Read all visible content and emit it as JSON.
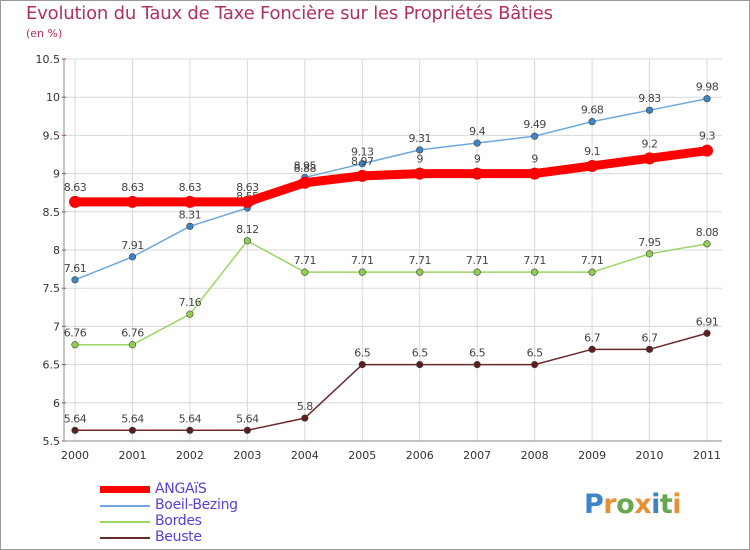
{
  "chart_data": {
    "type": "line",
    "title": "Evolution du Taux de Taxe Foncière sur les Propriétés Bâties",
    "subtitle": "(en %)",
    "xlabel": "",
    "ylabel": "",
    "x": [
      "2000",
      "2001",
      "2002",
      "2003",
      "2004",
      "2005",
      "2006",
      "2007",
      "2008",
      "2009",
      "2010",
      "2011"
    ],
    "ylim": [
      5.5,
      10.5
    ],
    "yticks": [
      5.5,
      6,
      6.5,
      7,
      7.5,
      8,
      8.5,
      9,
      9.5,
      10,
      10.5
    ],
    "grid": true,
    "legend_position": "bottom-left",
    "series": [
      {
        "name": "ANGAïS",
        "color": "#ff0000",
        "width": 9,
        "marker_color": "#ff0000",
        "values": [
          8.63,
          8.63,
          8.63,
          8.63,
          8.88,
          8.97,
          9,
          9,
          9,
          9.1,
          9.2,
          9.3
        ],
        "labels": [
          "8.63",
          "8.63",
          "8.63",
          "8.63",
          "8.88",
          "8.97",
          "9",
          "9",
          "9",
          "9.1",
          "9.2",
          "9.3"
        ]
      },
      {
        "name": "Boeil-Bezing",
        "color": "#6fa8dc",
        "width": 1.5,
        "marker_color": "#3d85c6",
        "values": [
          7.61,
          7.91,
          8.31,
          8.55,
          8.95,
          9.13,
          9.31,
          9.4,
          9.49,
          9.68,
          9.83,
          9.98
        ],
        "labels": [
          "7.61",
          "7.91",
          "8.31",
          "8.55",
          "8.95",
          "9.13",
          "9.31",
          "9.4",
          "9.49",
          "9.68",
          "9.83",
          "9.98"
        ]
      },
      {
        "name": "Bordes",
        "color": "#9ad662",
        "width": 1.5,
        "marker_color": "#8fcf50",
        "values": [
          6.76,
          6.76,
          7.16,
          8.12,
          7.71,
          7.71,
          7.71,
          7.71,
          7.71,
          7.71,
          7.95,
          8.08
        ],
        "labels": [
          "6.76",
          "6.76",
          "7.16",
          "8.12",
          "7.71",
          "7.71",
          "7.71",
          "7.71",
          "7.71",
          "7.71",
          "7.95",
          "8.08"
        ]
      },
      {
        "name": "Beuste",
        "color": "#6b2a2a",
        "width": 1.5,
        "marker_color": "#5c1f1f",
        "values": [
          5.64,
          5.64,
          5.64,
          5.64,
          5.8,
          6.5,
          6.5,
          6.5,
          6.5,
          6.7,
          6.7,
          6.91
        ],
        "labels": [
          "5.64",
          "5.64",
          "5.64",
          "5.64",
          "5.8",
          "6.5",
          "6.5",
          "6.5",
          "6.5",
          "6.7",
          "6.7",
          "6.91"
        ]
      }
    ]
  },
  "logo": {
    "text": "Proxiti",
    "letters": [
      "P",
      "r",
      "o",
      "x",
      "i",
      "t",
      "i"
    ],
    "colors": [
      "#3d85c6",
      "#e69138",
      "#6aa84f",
      "#e69138",
      "#3d85c6",
      "#6aa84f",
      "#e69138"
    ]
  }
}
